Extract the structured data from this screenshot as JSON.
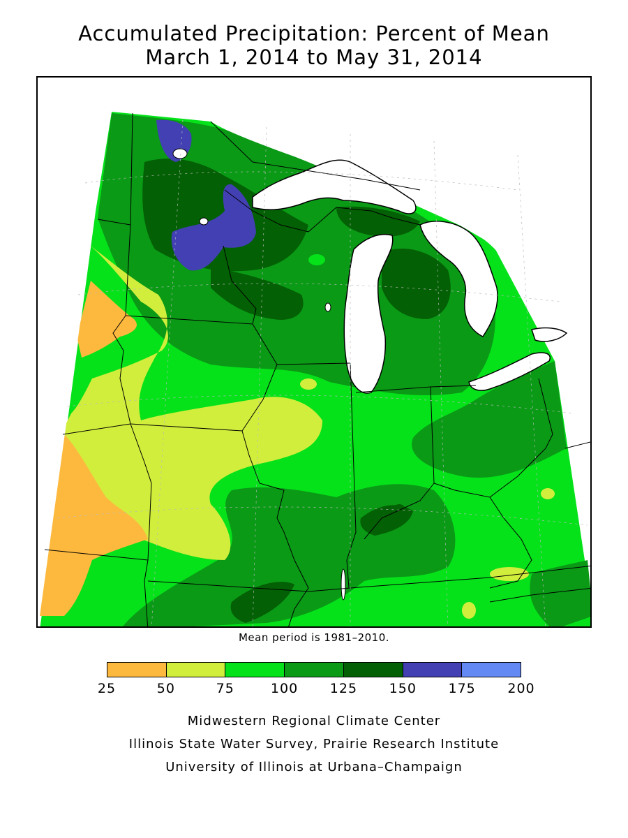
{
  "title": {
    "line1": "Accumulated Precipitation: Percent of Mean",
    "line2": "March 1, 2014 to May 31, 2014"
  },
  "note": "Mean period is 1981–2010.",
  "legend": {
    "classes": [
      {
        "range": "25-50",
        "color": "#fdb93e"
      },
      {
        "range": "50-75",
        "color": "#d2ee3c"
      },
      {
        "range": "75-100",
        "color": "#05e21a"
      },
      {
        "range": "100-125",
        "color": "#0a9a16"
      },
      {
        "range": "125-150",
        "color": "#036004"
      },
      {
        "range": "150-175",
        "color": "#4240b3"
      },
      {
        "range": "175-200",
        "color": "#6389f5"
      }
    ],
    "ticks": [
      "25",
      "50",
      "75",
      "100",
      "125",
      "150",
      "175",
      "200"
    ]
  },
  "credits": {
    "line1": "Midwestern Regional Climate Center",
    "line2": "Illinois State Water Survey, Prairie Research Institute",
    "line3": "University of Illinois at Urbana–Champaign"
  }
}
